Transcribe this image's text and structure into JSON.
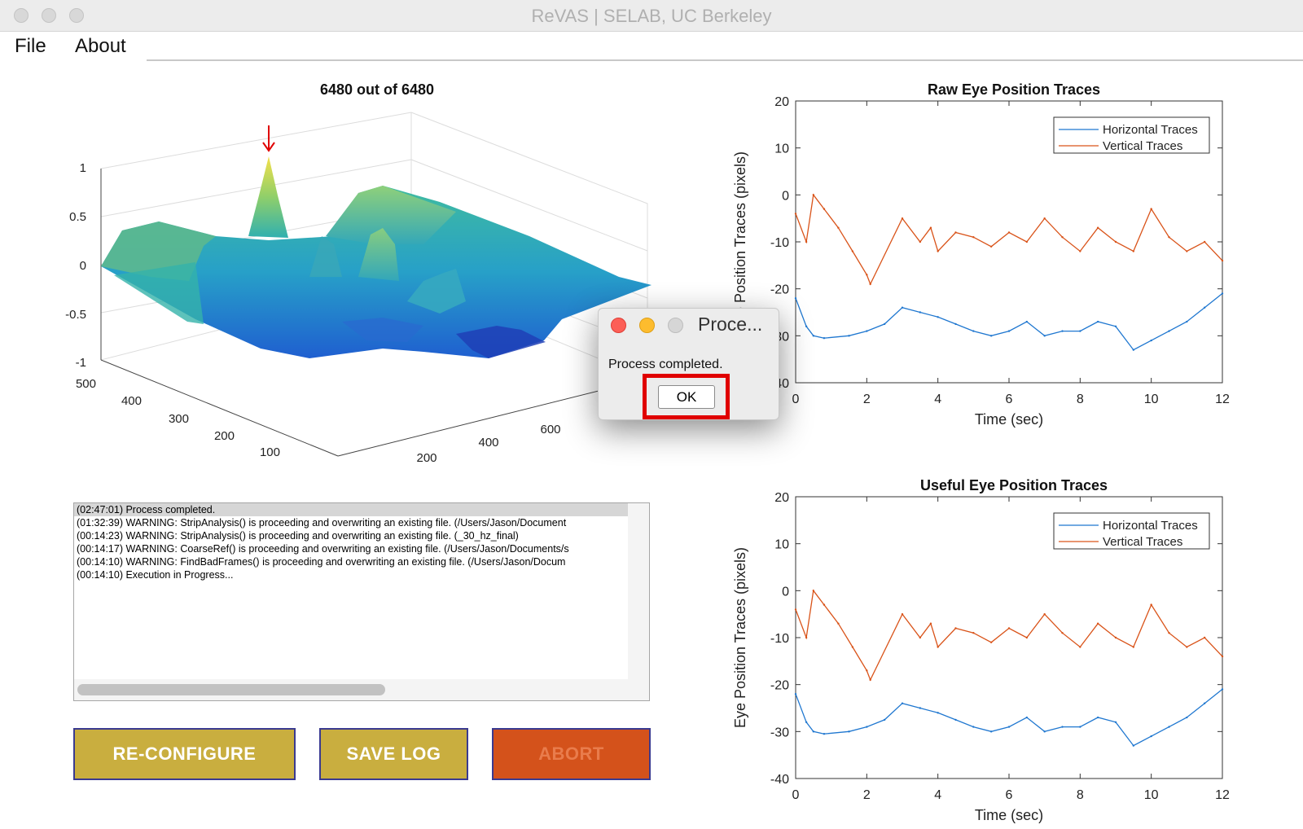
{
  "window": {
    "title": "ReVAS | SELAB, UC Berkeley"
  },
  "menu": [
    "File",
    "About"
  ],
  "surface": {
    "title": "6480 out of 6480",
    "z_ticks": [
      "1",
      "0.5",
      "0",
      "-0.5",
      "-1"
    ],
    "y_ticks": [
      "500",
      "400",
      "300",
      "200",
      "100"
    ],
    "x_ticks": [
      "200",
      "400",
      "600"
    ],
    "marker_color": "#e00000"
  },
  "log": {
    "lines": [
      "(02:47:01) Process completed.",
      "(01:32:39) WARNING: StripAnalysis() is proceeding and overwriting an existing file. (/Users/Jason/Document",
      "(00:14:23) WARNING: StripAnalysis() is proceeding and overwriting an existing file. (_30_hz_final)",
      "(00:14:17) WARNING: CoarseRef() is proceeding and overwriting an existing file. (/Users/Jason/Documents/s",
      "(00:14:10) WARNING: FindBadFrames() is proceeding and overwriting an existing file. (/Users/Jason/Docum",
      "(00:14:10) Execution in Progress..."
    ]
  },
  "buttons": {
    "reconfigure": "RE-CONFIGURE",
    "save_log": "SAVE LOG",
    "abort": "ABORT"
  },
  "colors": {
    "button_gold": "#c9ae3f",
    "button_orange": "#d4521b",
    "horizontal": "#1f77d0",
    "vertical": "#d95319"
  },
  "chart_data": [
    {
      "type": "line",
      "title": "Raw Eye Position Traces",
      "xlabel": "Time (sec)",
      "ylabel": "Eye Position Traces (pixels)",
      "xlim": [
        0,
        12
      ],
      "ylim": [
        -40,
        20
      ],
      "xticks": [
        "0",
        "2",
        "4",
        "6",
        "8",
        "10",
        "12"
      ],
      "yticks": [
        "20",
        "10",
        "0",
        "-10",
        "-20",
        "-30",
        "-40"
      ],
      "legend": "top-right",
      "series": [
        {
          "name": "Horizontal Traces",
          "x": [
            0,
            0.3,
            0.5,
            0.8,
            1.5,
            2.0,
            2.5,
            3.0,
            3.5,
            4.0,
            4.5,
            5.0,
            5.5,
            6.0,
            6.5,
            7.0,
            7.5,
            8.0,
            8.5,
            9.0,
            9.5,
            10.0,
            10.5,
            11.0,
            11.5,
            12.0
          ],
          "values": [
            -22,
            -28,
            -30,
            -30.5,
            -30,
            -29,
            -27.5,
            -24,
            -25,
            -26,
            -27.5,
            -29,
            -30,
            -29,
            -27,
            -30,
            -29,
            -29,
            -27,
            -28,
            -33,
            -31,
            -29,
            -27,
            -24,
            -21
          ]
        },
        {
          "name": "Vertical Traces",
          "x": [
            0,
            0.3,
            0.5,
            0.8,
            1.2,
            1.6,
            2.0,
            2.1,
            3.0,
            3.5,
            3.8,
            4.0,
            4.5,
            5.0,
            5.5,
            6.0,
            6.5,
            7.0,
            7.5,
            8.0,
            8.5,
            9.0,
            9.5,
            10.0,
            10.5,
            11.0,
            11.5,
            12.0
          ],
          "values": [
            -4,
            -10,
            0,
            -3,
            -7,
            -12,
            -17,
            -19,
            -5,
            -10,
            -7,
            -12,
            -8,
            -9,
            -11,
            -8,
            -10,
            -5,
            -9,
            -12,
            -7,
            -10,
            -12,
            -3,
            -9,
            -12,
            -10,
            -14
          ]
        }
      ]
    },
    {
      "type": "line",
      "title": "Useful Eye Position Traces",
      "xlabel": "Time (sec)",
      "ylabel": "Eye Position Traces (pixels)",
      "xlim": [
        0,
        12
      ],
      "ylim": [
        -40,
        20
      ],
      "xticks": [
        "0",
        "2",
        "4",
        "6",
        "8",
        "10",
        "12"
      ],
      "yticks": [
        "20",
        "10",
        "0",
        "-10",
        "-20",
        "-30",
        "-40"
      ],
      "legend": "top-right",
      "series": [
        {
          "name": "Horizontal Traces",
          "x": [
            0,
            0.3,
            0.5,
            0.8,
            1.5,
            2.0,
            2.5,
            3.0,
            3.5,
            4.0,
            4.5,
            5.0,
            5.5,
            6.0,
            6.5,
            7.0,
            7.5,
            8.0,
            8.5,
            9.0,
            9.5,
            10.0,
            10.5,
            11.0,
            11.5,
            12.0
          ],
          "values": [
            -22,
            -28,
            -30,
            -30.5,
            -30,
            -29,
            -27.5,
            -24,
            -25,
            -26,
            -27.5,
            -29,
            -30,
            -29,
            -27,
            -30,
            -29,
            -29,
            -27,
            -28,
            -33,
            -31,
            -29,
            -27,
            -24,
            -21
          ]
        },
        {
          "name": "Vertical Traces",
          "x": [
            0,
            0.3,
            0.5,
            0.8,
            1.2,
            1.6,
            2.0,
            2.1,
            3.0,
            3.5,
            3.8,
            4.0,
            4.5,
            5.0,
            5.5,
            6.0,
            6.5,
            7.0,
            7.5,
            8.0,
            8.5,
            9.0,
            9.5,
            10.0,
            10.5,
            11.0,
            11.5,
            12.0
          ],
          "values": [
            -4,
            -10,
            0,
            -3,
            -7,
            -12,
            -17,
            -19,
            -5,
            -10,
            -7,
            -12,
            -8,
            -9,
            -11,
            -8,
            -10,
            -5,
            -9,
            -12,
            -7,
            -10,
            -12,
            -3,
            -9,
            -12,
            -10,
            -14
          ]
        }
      ]
    }
  ],
  "dialog": {
    "title": "Proce...",
    "message": "Process completed.",
    "ok": "OK",
    "highlight_color": "#e00000"
  }
}
